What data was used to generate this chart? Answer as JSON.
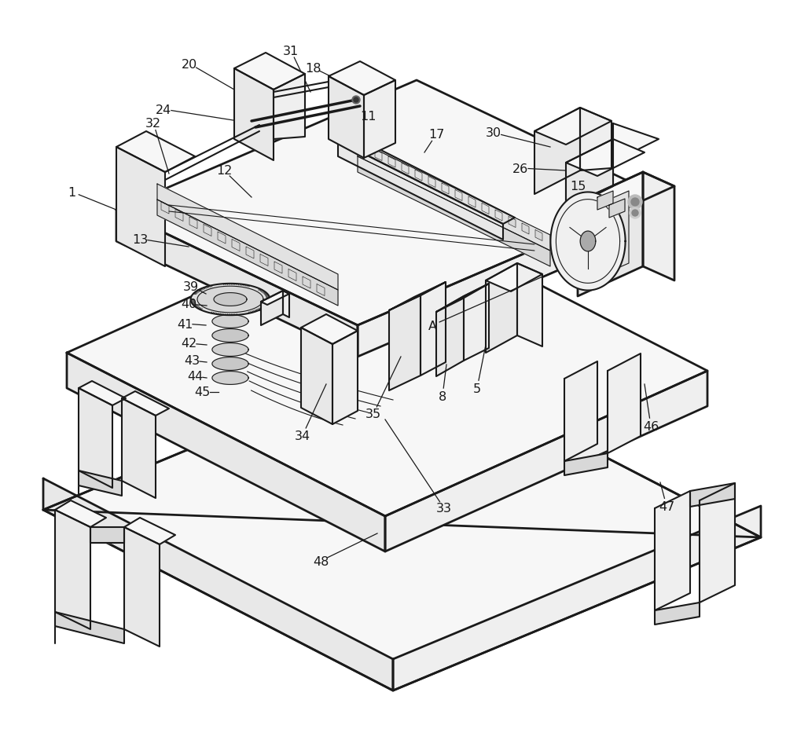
{
  "fig_width": 10.0,
  "fig_height": 9.29,
  "dpi": 100,
  "bg_color": "#ffffff",
  "lc": "#1a1a1a",
  "lw_main": 1.5,
  "lw_thin": 0.8,
  "lw_thick": 2.0,
  "face_top": "#f7f7f7",
  "face_left": "#e8e8e8",
  "face_right": "#efefef",
  "face_dark": "#d8d8d8",
  "face_mid": "#e2e2e2"
}
